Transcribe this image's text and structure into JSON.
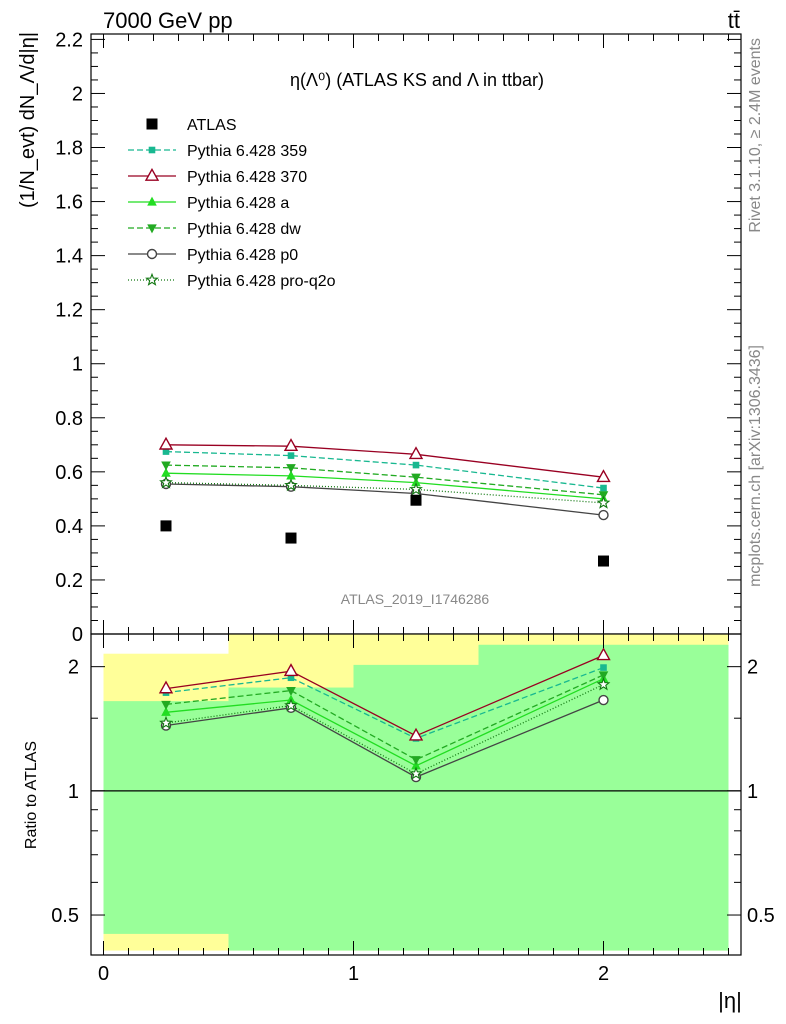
{
  "header": {
    "left": "7000 GeV pp",
    "right": "tt̄"
  },
  "side_labels": {
    "rivet": "Rivet 3.1.10, ≥ 2.4M events",
    "mcplots": "mcplots.cern.ch [arXiv:1306.3436]"
  },
  "watermark": "ATLAS_2019_I1746286",
  "chart_data": [
    {
      "type": "line",
      "title": "η(Λ⁰) (ATLAS KS and Λ in ttbar)",
      "ylabel": "(1/N_evt) dN_Λ/d|η|",
      "xlim": [
        -0.05,
        2.55
      ],
      "ylim": [
        0,
        2.22
      ],
      "yticks": [
        "0",
        "0.2",
        "0.4",
        "0.6",
        "0.8",
        "1",
        "1.2",
        "1.4",
        "1.6",
        "1.8",
        "2",
        "2.2"
      ],
      "x": [
        0.25,
        0.75,
        1.25,
        2.0
      ],
      "data": {
        "name": "ATLAS",
        "values": [
          0.4,
          0.355,
          0.495,
          0.27
        ],
        "color": "#000000"
      },
      "series": [
        {
          "name": "Pythia 6.428 359",
          "values": [
            0.675,
            0.66,
            0.625,
            0.54
          ],
          "color": "#18b890",
          "marker": "small-square",
          "dash": "6,3"
        },
        {
          "name": "Pythia 6.428 370",
          "values": [
            0.7,
            0.695,
            0.665,
            0.58
          ],
          "color": "#990022",
          "marker": "open-triangle-up",
          "dash": ""
        },
        {
          "name": "Pythia 6.428 a",
          "values": [
            0.595,
            0.585,
            0.56,
            0.5
          ],
          "color": "#22dd22",
          "marker": "triangle-up",
          "dash": ""
        },
        {
          "name": "Pythia 6.428 dw",
          "values": [
            0.625,
            0.615,
            0.58,
            0.515
          ],
          "color": "#22aa22",
          "marker": "triangle-down",
          "dash": "6,3"
        },
        {
          "name": "Pythia 6.428 p0",
          "values": [
            0.555,
            0.545,
            0.52,
            0.44
          ],
          "color": "#444444",
          "marker": "open-circle",
          "dash": ""
        },
        {
          "name": "Pythia 6.428 pro-q2o",
          "values": [
            0.56,
            0.55,
            0.535,
            0.485
          ],
          "color": "#117711",
          "marker": "star",
          "dash": "1,2"
        }
      ]
    },
    {
      "type": "line",
      "xlabel": "|η|",
      "ylabel": "Ratio to ATLAS",
      "log_y": true,
      "xlim": [
        -0.05,
        2.55
      ],
      "ylim": [
        0.4,
        2.4
      ],
      "yticks": [
        "0.5",
        "1",
        "2"
      ],
      "xticks": [
        "0",
        "1",
        "2"
      ],
      "reference_line": 1,
      "bands": [
        {
          "x0": 0.0,
          "x1": 0.5,
          "yellow": [
            0.41,
            2.15
          ],
          "green": [
            0.45,
            1.65
          ]
        },
        {
          "x0": 0.5,
          "x1": 1.0,
          "yellow": [
            0.41,
            2.4
          ],
          "green": [
            0.41,
            1.78
          ]
        },
        {
          "x0": 1.0,
          "x1": 1.5,
          "yellow": [
            0.41,
            2.4
          ],
          "green": [
            0.41,
            2.02
          ]
        },
        {
          "x0": 1.5,
          "x1": 2.5,
          "yellow": [
            0.41,
            2.4
          ],
          "green": [
            0.41,
            2.26
          ]
        }
      ],
      "band_colors": {
        "yellow": "#ffff99",
        "green": "#99ff99"
      },
      "series": [
        {
          "name": "Pythia 6.428 359",
          "values": [
            1.73,
            1.88,
            1.34,
            1.99
          ]
        },
        {
          "name": "Pythia 6.428 370",
          "values": [
            1.77,
            1.95,
            1.36,
            2.13
          ]
        },
        {
          "name": "Pythia 6.428 a",
          "values": [
            1.55,
            1.66,
            1.15,
            1.87
          ]
        },
        {
          "name": "Pythia 6.428 dw",
          "values": [
            1.62,
            1.75,
            1.19,
            1.91
          ]
        },
        {
          "name": "Pythia 6.428 p0",
          "values": [
            1.44,
            1.59,
            1.08,
            1.66
          ]
        },
        {
          "name": "Pythia 6.428 pro-q2o",
          "values": [
            1.46,
            1.61,
            1.1,
            1.81
          ]
        }
      ]
    }
  ]
}
